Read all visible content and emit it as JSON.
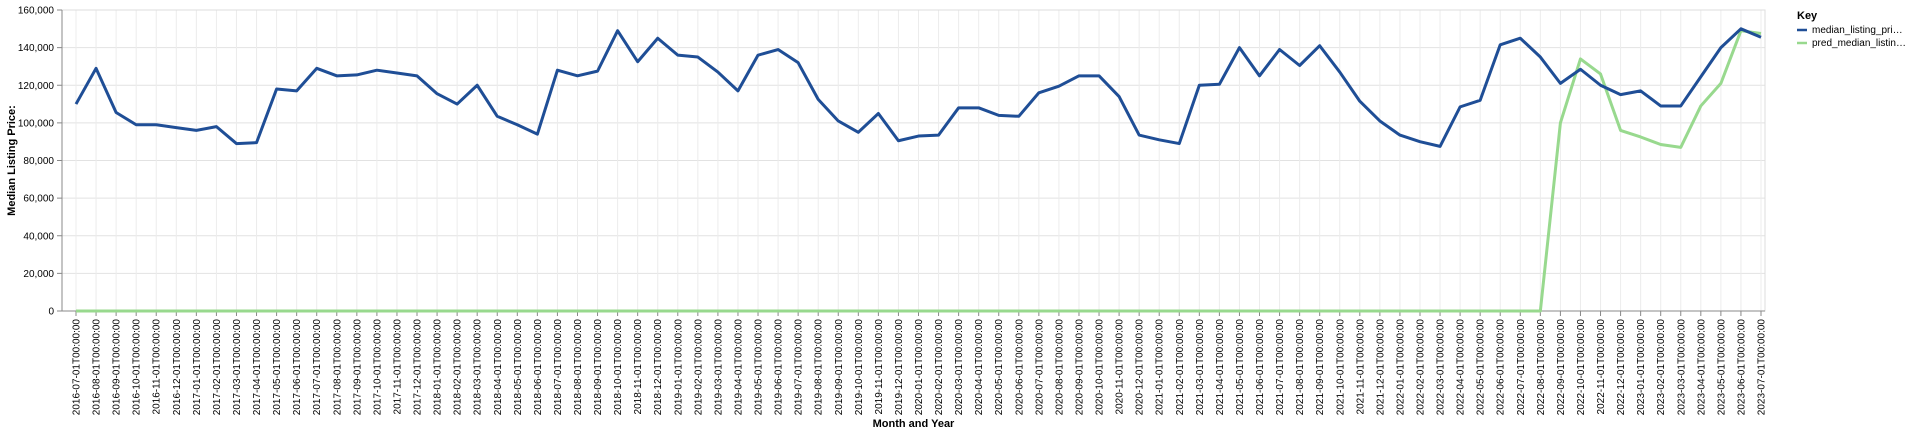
{
  "chart_data": {
    "type": "line",
    "xlabel": "Month and Year",
    "ylabel": "Median Listing Price:",
    "ylim": [
      0,
      160000
    ],
    "yticks": [
      "0",
      "20,000",
      "40,000",
      "60,000",
      "80,000",
      "100,000",
      "120,000",
      "140,000",
      "160,000"
    ],
    "ytick_values": [
      0,
      20000,
      40000,
      60000,
      80000,
      100000,
      120000,
      140000,
      160000
    ],
    "grid": true,
    "legend": {
      "title": "Key",
      "placement": "top-right",
      "entries": [
        "median_listing_pri…",
        "pred_median_listin…"
      ]
    },
    "x": [
      "2016-07-01T00:00:00",
      "2016-08-01T00:00:00",
      "2016-09-01T00:00:00",
      "2016-10-01T00:00:00",
      "2016-11-01T00:00:00",
      "2016-12-01T00:00:00",
      "2017-01-01T00:00:00",
      "2017-02-01T00:00:00",
      "2017-03-01T00:00:00",
      "2017-04-01T00:00:00",
      "2017-05-01T00:00:00",
      "2017-06-01T00:00:00",
      "2017-07-01T00:00:00",
      "2017-08-01T00:00:00",
      "2017-09-01T00:00:00",
      "2017-10-01T00:00:00",
      "2017-11-01T00:00:00",
      "2017-12-01T00:00:00",
      "2018-01-01T00:00:00",
      "2018-02-01T00:00:00",
      "2018-03-01T00:00:00",
      "2018-04-01T00:00:00",
      "2018-05-01T00:00:00",
      "2018-06-01T00:00:00",
      "2018-07-01T00:00:00",
      "2018-08-01T00:00:00",
      "2018-09-01T00:00:00",
      "2018-10-01T00:00:00",
      "2018-11-01T00:00:00",
      "2018-12-01T00:00:00",
      "2019-01-01T00:00:00",
      "2019-02-01T00:00:00",
      "2019-03-01T00:00:00",
      "2019-04-01T00:00:00",
      "2019-05-01T00:00:00",
      "2019-06-01T00:00:00",
      "2019-07-01T00:00:00",
      "2019-08-01T00:00:00",
      "2019-09-01T00:00:00",
      "2019-10-01T00:00:00",
      "2019-11-01T00:00:00",
      "2019-12-01T00:00:00",
      "2020-01-01T00:00:00",
      "2020-02-01T00:00:00",
      "2020-03-01T00:00:00",
      "2020-04-01T00:00:00",
      "2020-05-01T00:00:00",
      "2020-06-01T00:00:00",
      "2020-07-01T00:00:00",
      "2020-08-01T00:00:00",
      "2020-09-01T00:00:00",
      "2020-10-01T00:00:00",
      "2020-11-01T00:00:00",
      "2020-12-01T00:00:00",
      "2021-01-01T00:00:00",
      "2021-02-01T00:00:00",
      "2021-03-01T00:00:00",
      "2021-04-01T00:00:00",
      "2021-05-01T00:00:00",
      "2021-06-01T00:00:00",
      "2021-07-01T00:00:00",
      "2021-08-01T00:00:00",
      "2021-09-01T00:00:00",
      "2021-10-01T00:00:00",
      "2021-11-01T00:00:00",
      "2021-12-01T00:00:00",
      "2022-01-01T00:00:00",
      "2022-02-01T00:00:00",
      "2022-03-01T00:00:00",
      "2022-04-01T00:00:00",
      "2022-05-01T00:00:00",
      "2022-06-01T00:00:00",
      "2022-07-01T00:00:00",
      "2022-08-01T00:00:00",
      "2022-09-01T00:00:00",
      "2022-10-01T00:00:00",
      "2022-11-01T00:00:00",
      "2022-12-01T00:00:00",
      "2023-01-01T00:00:00",
      "2023-02-01T00:00:00",
      "2023-03-01T00:00:00",
      "2023-04-01T00:00:00",
      "2023-05-01T00:00:00",
      "2023-06-01T00:00:00",
      "2023-07-01T00:00:00"
    ],
    "series": [
      {
        "name": "median_listing_pri…",
        "color": "#1f4e96",
        "values": [
          110000,
          129000,
          105500,
          99000,
          99000,
          97500,
          96000,
          98000,
          89000,
          89500,
          118000,
          117000,
          129000,
          125000,
          125500,
          128000,
          126500,
          125000,
          115500,
          110000,
          120000,
          103500,
          99000,
          94000,
          128000,
          125000,
          127500,
          149000,
          132500,
          145000,
          136000,
          135000,
          127000,
          117000,
          136000,
          139000,
          132000,
          112500,
          101000,
          95000,
          105000,
          90500,
          93000,
          93500,
          108000,
          108000,
          104000,
          103500,
          116000,
          119500,
          125000,
          125000,
          114000,
          93500,
          91000,
          89000,
          120000,
          120500,
          140000,
          125000,
          139000,
          130500,
          141000,
          127000,
          111500,
          101000,
          93500,
          90000,
          87500,
          108500,
          112000,
          141500,
          145000,
          135000,
          121000,
          128500,
          120000,
          115000,
          117000,
          109000,
          109000,
          124500,
          140000,
          150000,
          145500
        ]
      },
      {
        "name": "pred_median_listin…",
        "color": "#98d98e",
        "values": [
          0,
          0,
          0,
          0,
          0,
          0,
          0,
          0,
          0,
          0,
          0,
          0,
          0,
          0,
          0,
          0,
          0,
          0,
          0,
          0,
          0,
          0,
          0,
          0,
          0,
          0,
          0,
          0,
          0,
          0,
          0,
          0,
          0,
          0,
          0,
          0,
          0,
          0,
          0,
          0,
          0,
          0,
          0,
          0,
          0,
          0,
          0,
          0,
          0,
          0,
          0,
          0,
          0,
          0,
          0,
          0,
          0,
          0,
          0,
          0,
          0,
          0,
          0,
          0,
          0,
          0,
          0,
          0,
          0,
          0,
          0,
          0,
          0,
          0,
          100000,
          134000,
          126000,
          96000,
          92500,
          88500,
          87000,
          109000,
          121000,
          149000,
          147500
        ]
      }
    ]
  }
}
